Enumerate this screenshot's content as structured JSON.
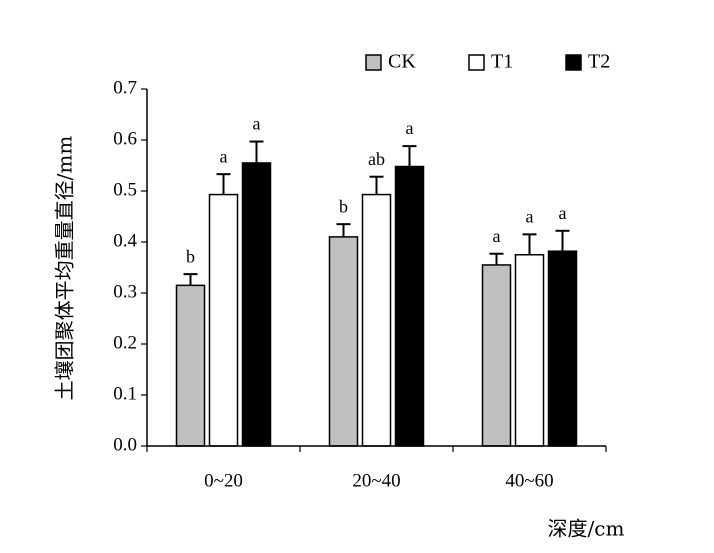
{
  "chart_data": {
    "type": "bar",
    "title": "",
    "xlabel": "深度/cm",
    "ylabel": "土壤团聚体平均重量直径/mm",
    "ylim": [
      0,
      0.7
    ],
    "yticks": [
      "0.0",
      "0.1",
      "0.2",
      "0.3",
      "0.4",
      "0.5",
      "0.6",
      "0.7"
    ],
    "categories": [
      "0~20",
      "20~40",
      "40~60"
    ],
    "legend_position": "top-right",
    "grid": false,
    "series": [
      {
        "name": "CK",
        "color": "#c0c0c0",
        "values": [
          0.315,
          0.41,
          0.355
        ],
        "errors": [
          0.022,
          0.025,
          0.022
        ],
        "labels": [
          "b",
          "b",
          "a"
        ]
      },
      {
        "name": "T1",
        "color": "#ffffff",
        "values": [
          0.493,
          0.493,
          0.375
        ],
        "errors": [
          0.04,
          0.035,
          0.04
        ],
        "labels": [
          "a",
          "ab",
          "a"
        ]
      },
      {
        "name": "T2",
        "color": "#000000",
        "values": [
          0.555,
          0.548,
          0.382
        ],
        "errors": [
          0.042,
          0.04,
          0.04
        ],
        "labels": [
          "a",
          "a",
          "a"
        ]
      }
    ]
  }
}
